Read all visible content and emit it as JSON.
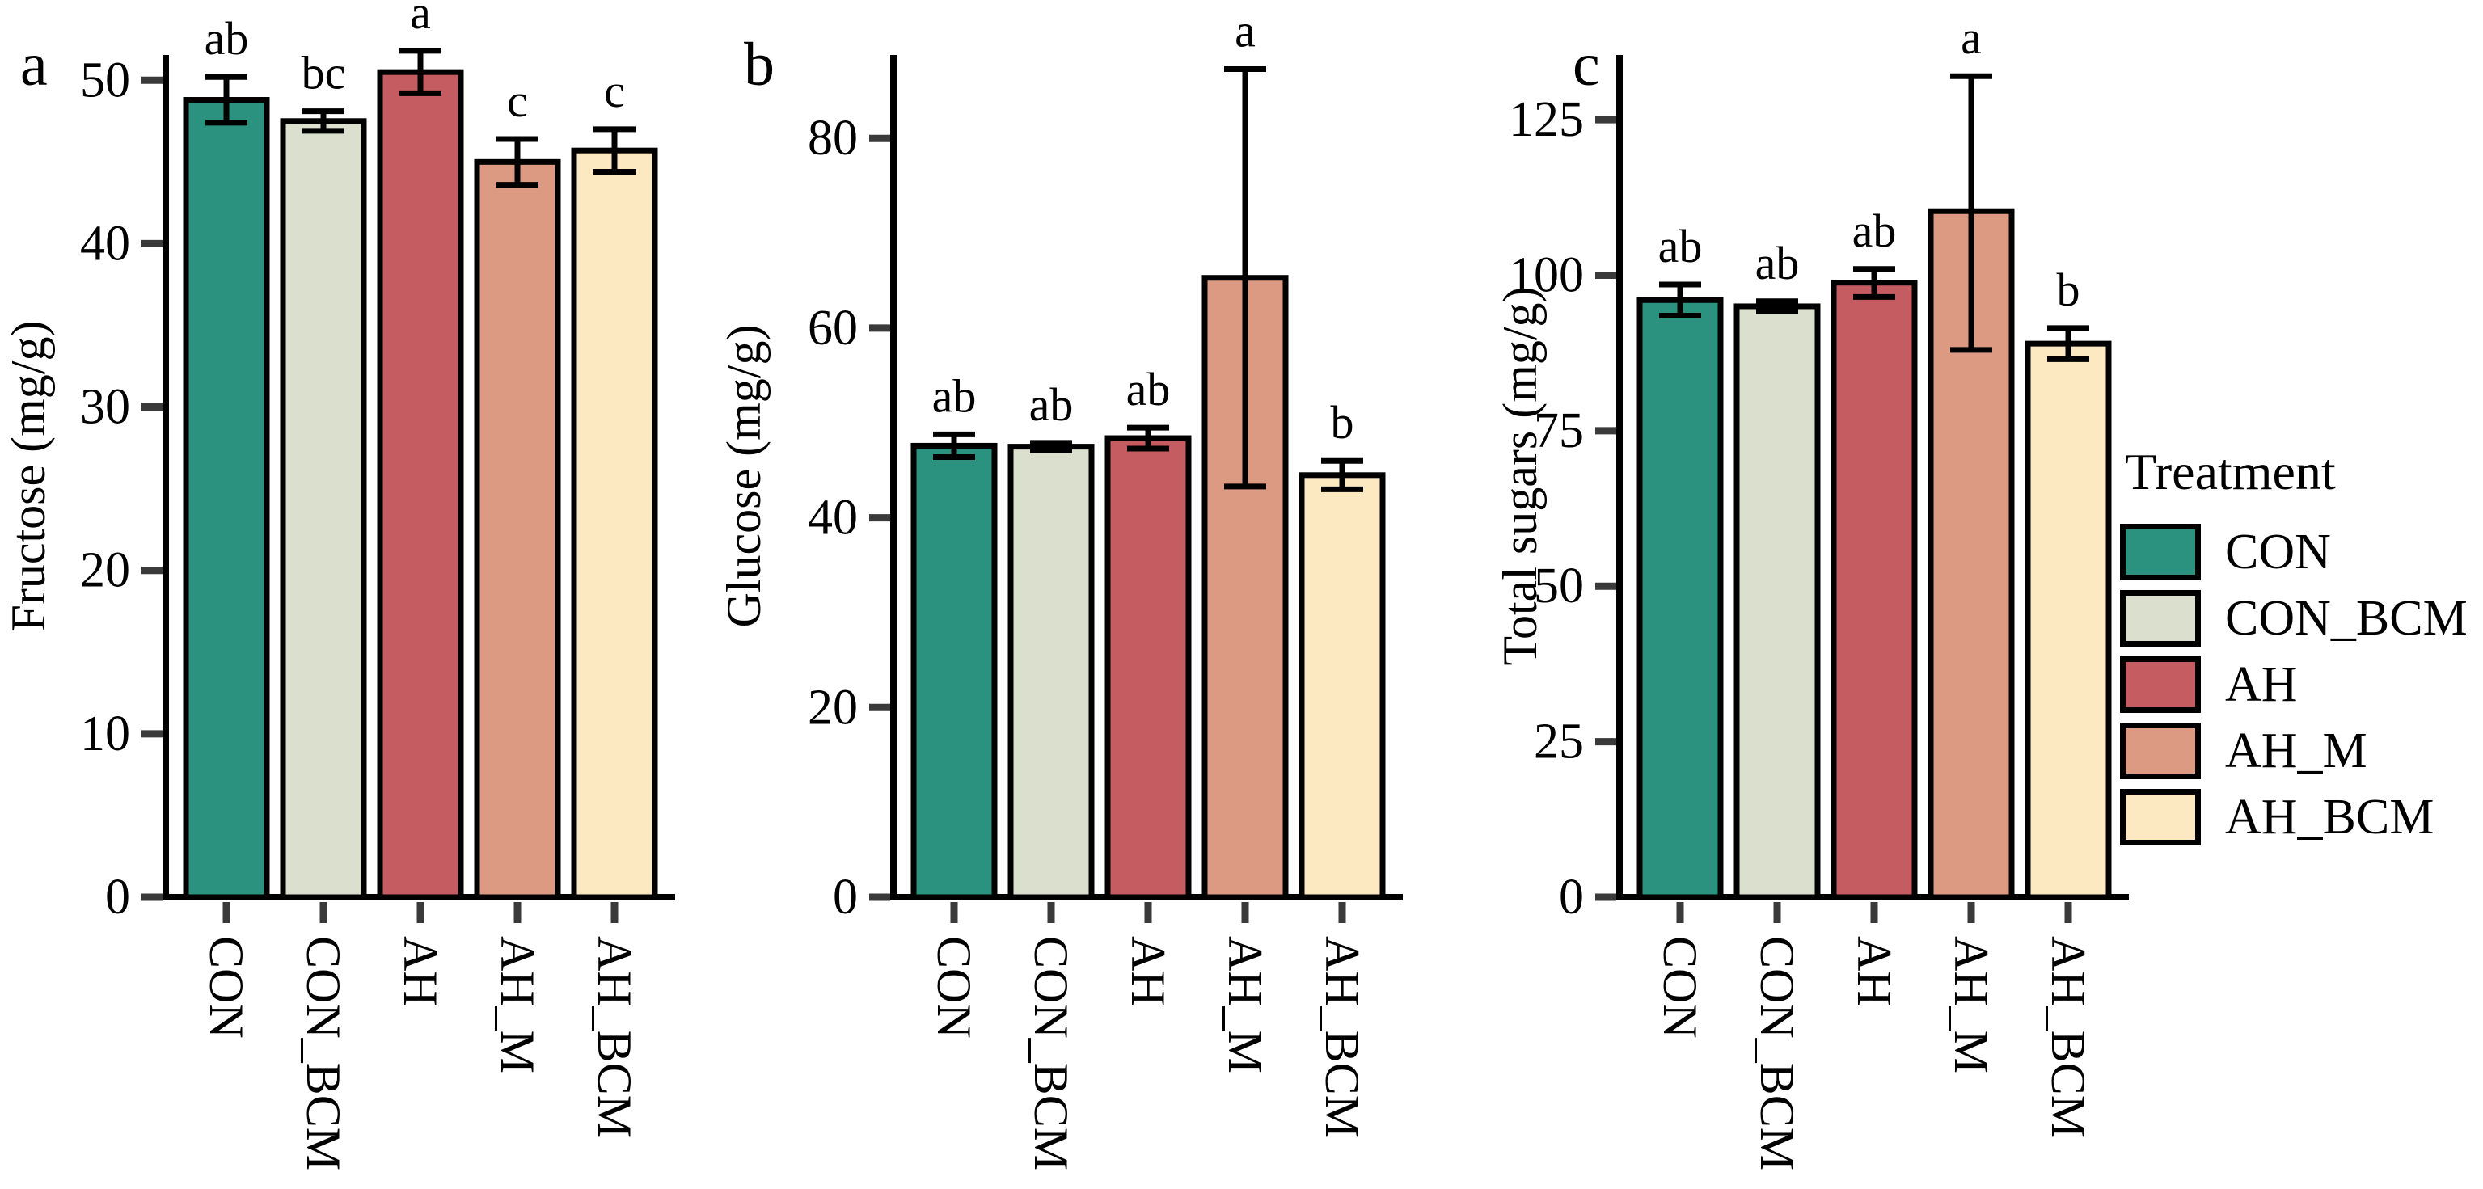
{
  "chart_data": {
    "type": "bar",
    "categories": [
      "CON",
      "CON_BCM",
      "AH",
      "AH_M",
      "AH_BCM"
    ],
    "colors": [
      "#2A927E",
      "#DBDFCE",
      "#C55C62",
      "#DC9A83",
      "#FCE9C1"
    ],
    "bar_border_color": "#000000",
    "tick_color": "#3a3a3a",
    "grid": "off",
    "legend_position": "right",
    "panels": [
      {
        "panel_label": "a",
        "ylabel": "Fructose (mg/g)",
        "values": [
          48.8,
          47.5,
          50.5,
          45.0,
          45.7
        ],
        "error_low": [
          47.4,
          46.9,
          49.2,
          43.6,
          44.4
        ],
        "error_high": [
          50.2,
          48.1,
          51.8,
          46.4,
          47.0
        ],
        "sig_letters": [
          "ab",
          "bc",
          "a",
          "c",
          "c"
        ],
        "yticks": [
          0,
          10,
          20,
          30,
          40,
          50
        ],
        "ylim": [
          0,
          51.2
        ]
      },
      {
        "panel_label": "b",
        "ylabel": "Glucose (mg/g)",
        "values": [
          47.6,
          47.5,
          48.4,
          65.3,
          44.5
        ],
        "error_low": [
          46.4,
          47.1,
          47.3,
          43.3,
          43.0
        ],
        "error_high": [
          48.8,
          47.9,
          49.5,
          87.3,
          46.0
        ],
        "sig_letters": [
          "ab",
          "ab",
          "ab",
          "a",
          "b"
        ],
        "yticks": [
          0,
          20,
          40,
          60,
          80
        ],
        "ylim": [
          0,
          88.2
        ]
      },
      {
        "panel_label": "c",
        "ylabel": "Total sugars (mg/g)",
        "values": [
          96.0,
          95.0,
          98.8,
          110.3,
          89.0
        ],
        "error_low": [
          93.5,
          94.2,
          96.5,
          88.0,
          86.5
        ],
        "error_high": [
          98.5,
          95.8,
          101.0,
          132.0,
          91.5
        ],
        "sig_letters": [
          "ab",
          "ab",
          "ab",
          "a",
          "b"
        ],
        "yticks": [
          0,
          25,
          50,
          75,
          100,
          125
        ],
        "ylim": [
          0,
          134.5
        ]
      }
    ],
    "legend": {
      "title": "Treatment",
      "entries": [
        "CON",
        "CON_BCM",
        "AH",
        "AH_M",
        "AH_BCM"
      ]
    }
  }
}
